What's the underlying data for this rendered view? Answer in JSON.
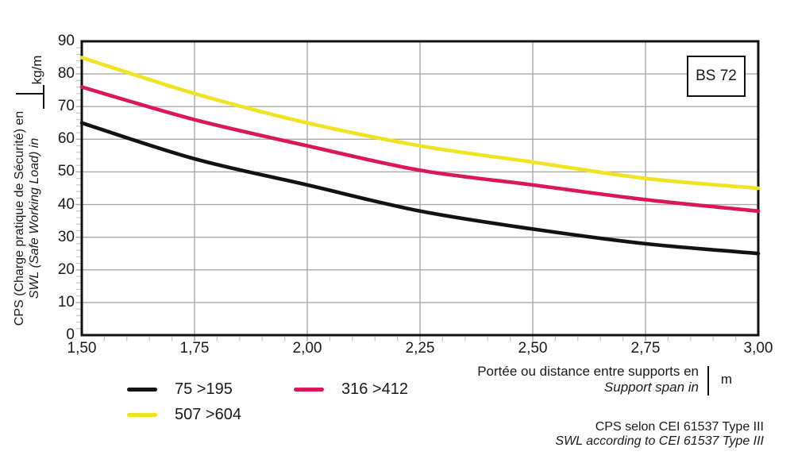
{
  "chart_data": {
    "type": "line",
    "title": "",
    "x": [
      1.5,
      1.75,
      2.0,
      2.25,
      2.5,
      2.75,
      3.0
    ],
    "x_tick_labels": [
      "1,50",
      "1,75",
      "2,00",
      "2,25",
      "2,50",
      "2,75",
      "3,00"
    ],
    "y_ticks": [
      0,
      10,
      20,
      30,
      40,
      50,
      60,
      70,
      80,
      90
    ],
    "xlim": [
      1.5,
      3.0
    ],
    "ylim": [
      0,
      90
    ],
    "grid": true,
    "legend_position": "bottom-left",
    "series": [
      {
        "name": "75 >195",
        "color": "#121212",
        "values": [
          65,
          54,
          46,
          38,
          32.5,
          28,
          25
        ]
      },
      {
        "name": "316 >412",
        "color": "#da1757",
        "values": [
          76,
          66,
          58,
          50.5,
          46,
          41.5,
          38
        ]
      },
      {
        "name": "507 >604",
        "color": "#f0e321",
        "values": [
          85,
          74,
          65,
          58,
          53,
          48,
          45
        ]
      }
    ],
    "y_axis_label_fr": "CPS (Charge pratique de Sécurité) en",
    "y_axis_label_en": "SWL (Safe Working Load) in",
    "y_axis_unit": "kg/m",
    "x_axis_label_fr": "Portée ou distance entre supports en",
    "x_axis_label_en": "Support span in",
    "x_axis_unit": "m"
  },
  "badge": {
    "label": "BS 72"
  },
  "footer": {
    "line1": "CPS selon CEI 61537 Type III",
    "line2": "SWL according to CEI 61537 Type III"
  },
  "colors": {
    "grid": "#a8a8a8",
    "minor_tick": "#c4c4c4",
    "axis": "#111111",
    "text": "#1a1a1a",
    "background": "#ffffff"
  }
}
